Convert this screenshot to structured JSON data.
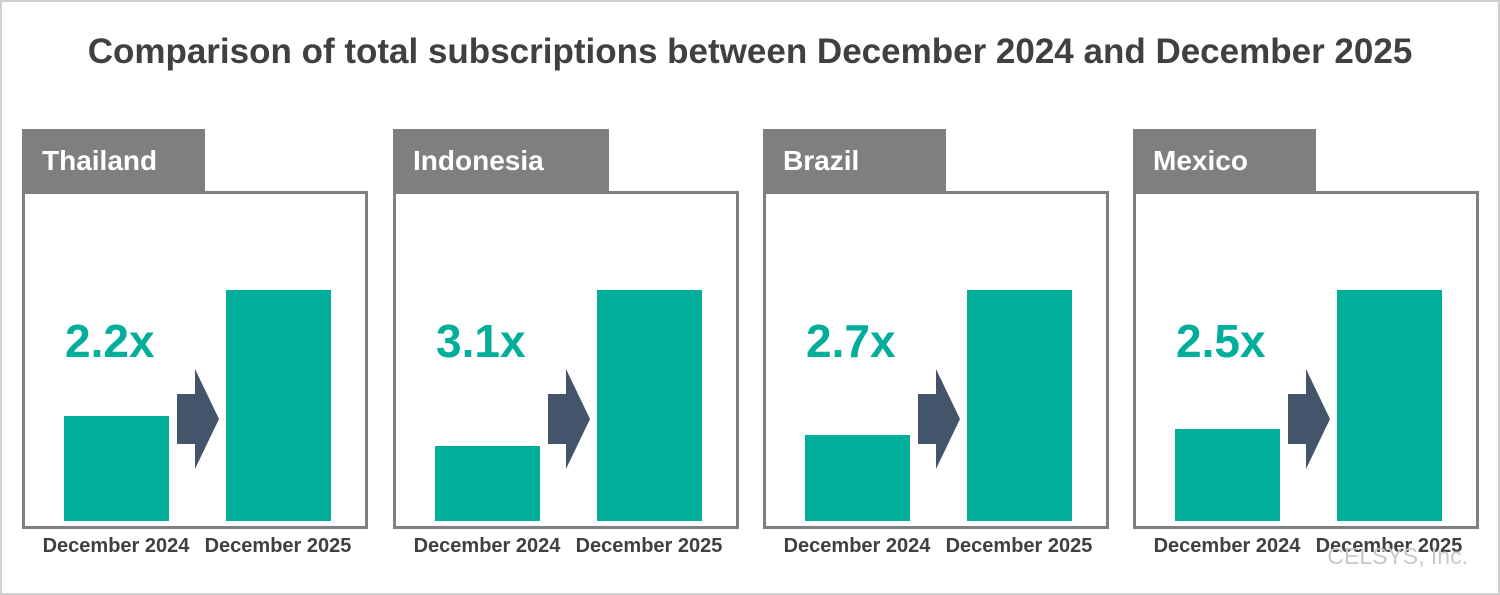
{
  "title": "Comparison of total subscriptions between December 2024 and December 2025",
  "credit": "CELSYS, Inc.",
  "colors": {
    "bar": "#00ae9a",
    "arrow": "#44546a",
    "tab": "#7f7f7f",
    "title_text": "#404040"
  },
  "chart_data": [
    {
      "type": "bar",
      "title": "Thailand",
      "annotation": "2.2x",
      "categories": [
        "December 2024",
        "December 2025"
      ],
      "values": [
        1,
        2.2
      ]
    },
    {
      "type": "bar",
      "title": "Indonesia",
      "annotation": "3.1x",
      "categories": [
        "December 2024",
        "December 2025"
      ],
      "values": [
        1,
        3.1
      ]
    },
    {
      "type": "bar",
      "title": "Brazil",
      "annotation": "2.7x",
      "categories": [
        "December 2024",
        "December 2025"
      ],
      "values": [
        1,
        2.7
      ]
    },
    {
      "type": "bar",
      "title": "Mexico",
      "annotation": "2.5x",
      "categories": [
        "December 2024",
        "December 2025"
      ],
      "values": [
        1,
        2.5
      ]
    }
  ]
}
